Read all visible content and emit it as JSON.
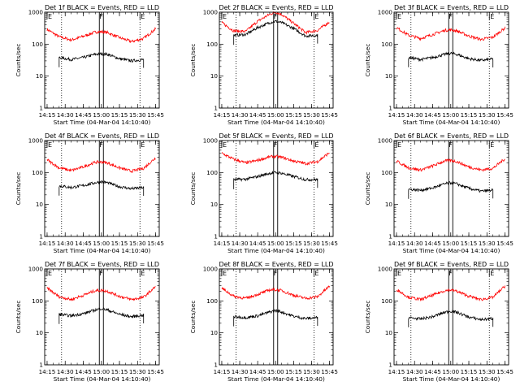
{
  "chart_data": {
    "type": "line",
    "yscale": "log",
    "ylim": [
      1,
      1000
    ],
    "y_ticks": [
      "1",
      "10",
      "100",
      "1000"
    ],
    "x_ticks": [
      "14:15",
      "14:30",
      "14:45",
      "15:00",
      "15:15",
      "15:30",
      "15:45"
    ],
    "xlabel": "Start Time (04-Mar-04 14:10:40)",
    "ylabel": "Counts/sec",
    "markers": [
      {
        "label": "E",
        "time": "14:15"
      },
      {
        "label": "F",
        "time": "15:00"
      },
      {
        "label": "E",
        "time": "15:32"
      }
    ],
    "dotted_lines": [
      "14:27",
      "15:32"
    ],
    "panels": [
      {
        "title": "Det 1f BLACK = Events, RED = LLD",
        "series": [
          {
            "name": "RED",
            "color": "#ff0000",
            "x": [
              "14:15",
              "14:25",
              "14:35",
              "14:45",
              "14:55",
              "15:00",
              "15:05",
              "15:15",
              "15:25",
              "15:35",
              "15:45"
            ],
            "y": [
              290,
              170,
              135,
              175,
              240,
              245,
              230,
              160,
              120,
              150,
              300
            ]
          },
          {
            "name": "BLACK",
            "color": "#000000",
            "x": [
              "14:25",
              "14:35",
              "14:45",
              "14:55",
              "15:00",
              "15:05",
              "15:15",
              "15:25",
              "15:35"
            ],
            "y": [
              38,
              33,
              38,
              48,
              50,
              48,
              35,
              30,
              33
            ]
          }
        ]
      },
      {
        "title": "Det 2f BLACK = Events, RED = LLD",
        "series": [
          {
            "name": "RED",
            "color": "#ff0000",
            "x": [
              "14:15",
              "14:25",
              "14:35",
              "14:45",
              "14:55",
              "15:00",
              "15:05",
              "15:15",
              "15:25",
              "15:35",
              "15:45"
            ],
            "y": [
              470,
              260,
              250,
              520,
              860,
              1000,
              850,
              450,
              230,
              270,
              500
            ]
          },
          {
            "name": "BLACK",
            "color": "#000000",
            "x": [
              "14:25",
              "14:35",
              "14:45",
              "14:55",
              "15:00",
              "15:05",
              "15:15",
              "15:25",
              "15:35"
            ],
            "y": [
              190,
              200,
              330,
              470,
              520,
              470,
              310,
              180,
              190
            ]
          }
        ]
      },
      {
        "title": "Det 3f BLACK = Events, RED = LLD",
        "series": [
          {
            "name": "RED",
            "color": "#ff0000",
            "x": [
              "14:15",
              "14:25",
              "14:35",
              "14:45",
              "14:55",
              "15:00",
              "15:05",
              "15:15",
              "15:25",
              "15:35",
              "15:45"
            ],
            "y": [
              330,
              190,
              150,
              200,
              270,
              280,
              260,
              180,
              140,
              165,
              320
            ]
          },
          {
            "name": "BLACK",
            "color": "#000000",
            "x": [
              "14:25",
              "14:35",
              "14:45",
              "14:55",
              "15:00",
              "15:05",
              "15:15",
              "15:25",
              "15:35"
            ],
            "y": [
              38,
              33,
              38,
              48,
              52,
              48,
              35,
              31,
              34
            ]
          }
        ]
      },
      {
        "title": "Det 4f BLACK = Events, RED = LLD",
        "series": [
          {
            "name": "RED",
            "color": "#ff0000",
            "x": [
              "14:15",
              "14:25",
              "14:35",
              "14:45",
              "14:55",
              "15:00",
              "15:05",
              "15:15",
              "15:25",
              "15:35",
              "15:45"
            ],
            "y": [
              250,
              140,
              115,
              150,
              210,
              215,
              200,
              140,
              110,
              135,
              290
            ]
          },
          {
            "name": "BLACK",
            "color": "#000000",
            "x": [
              "14:25",
              "14:35",
              "14:45",
              "14:55",
              "15:00",
              "15:05",
              "15:15",
              "15:25",
              "15:35"
            ],
            "y": [
              38,
              34,
              39,
              48,
              52,
              48,
              36,
              31,
              34
            ]
          }
        ]
      },
      {
        "title": "Det 5f BLACK = Events, RED = LLD",
        "series": [
          {
            "name": "RED",
            "color": "#ff0000",
            "x": [
              "14:15",
              "14:25",
              "14:35",
              "14:45",
              "14:55",
              "15:00",
              "15:05",
              "15:15",
              "15:25",
              "15:35",
              "15:45"
            ],
            "y": [
              400,
              260,
              200,
              240,
              310,
              320,
              300,
              230,
              190,
              220,
              420
            ]
          },
          {
            "name": "BLACK",
            "color": "#000000",
            "x": [
              "14:25",
              "14:35",
              "14:45",
              "14:55",
              "15:00",
              "15:05",
              "15:15",
              "15:25",
              "15:35"
            ],
            "y": [
              60,
              62,
              75,
              95,
              100,
              95,
              75,
              60,
              60
            ]
          }
        ]
      },
      {
        "title": "Det 6f BLACK = Events, RED = LLD",
        "series": [
          {
            "name": "RED",
            "color": "#ff0000",
            "x": [
              "14:15",
              "14:25",
              "14:35",
              "14:45",
              "14:55",
              "15:00",
              "15:05",
              "15:15",
              "15:25",
              "15:35",
              "15:45"
            ],
            "y": [
              230,
              140,
              120,
              160,
              230,
              240,
              220,
              150,
              120,
              135,
              270
            ]
          },
          {
            "name": "BLACK",
            "color": "#000000",
            "x": [
              "14:25",
              "14:35",
              "14:45",
              "14:55",
              "15:00",
              "15:05",
              "15:15",
              "15:25",
              "15:35"
            ],
            "y": [
              30,
              28,
              33,
              44,
              48,
              44,
              32,
              26,
              28
            ]
          }
        ]
      },
      {
        "title": "Det 7f BLACK = Events, RED = LLD",
        "series": [
          {
            "name": "RED",
            "color": "#ff0000",
            "x": [
              "14:15",
              "14:25",
              "14:35",
              "14:45",
              "14:55",
              "15:00",
              "15:05",
              "15:15",
              "15:25",
              "15:35",
              "15:45"
            ],
            "y": [
              250,
              135,
              110,
              150,
              210,
              215,
              200,
              140,
              110,
              130,
              280
            ]
          },
          {
            "name": "BLACK",
            "color": "#000000",
            "x": [
              "14:25",
              "14:35",
              "14:45",
              "14:55",
              "15:00",
              "15:05",
              "15:15",
              "15:25",
              "15:35"
            ],
            "y": [
              38,
              34,
              40,
              52,
              58,
              52,
              38,
              32,
              36
            ]
          }
        ]
      },
      {
        "title": "Det 8f BLACK = Events, RED = LLD",
        "series": [
          {
            "name": "RED",
            "color": "#ff0000",
            "x": [
              "14:15",
              "14:25",
              "14:35",
              "14:45",
              "14:55",
              "15:00",
              "15:05",
              "15:15",
              "15:25",
              "15:35",
              "15:45"
            ],
            "y": [
              250,
              140,
              120,
              160,
              220,
              225,
              210,
              150,
              120,
              135,
              290
            ]
          },
          {
            "name": "BLACK",
            "color": "#000000",
            "x": [
              "14:25",
              "14:35",
              "14:45",
              "14:55",
              "15:00",
              "15:05",
              "15:15",
              "15:25",
              "15:35"
            ],
            "y": [
              32,
              30,
              34,
              45,
              50,
              45,
              33,
              28,
              30
            ]
          }
        ]
      },
      {
        "title": "Det 9f BLACK = Events, RED = LLD",
        "series": [
          {
            "name": "RED",
            "color": "#ff0000",
            "x": [
              "14:15",
              "14:25",
              "14:35",
              "14:45",
              "14:55",
              "15:00",
              "15:05",
              "15:15",
              "15:25",
              "15:35",
              "15:45"
            ],
            "y": [
              230,
              130,
              110,
              150,
              210,
              220,
              200,
              140,
              110,
              130,
              290
            ]
          },
          {
            "name": "BLACK",
            "color": "#000000",
            "x": [
              "14:25",
              "14:35",
              "14:45",
              "14:55",
              "15:00",
              "15:05",
              "15:15",
              "15:25",
              "15:35"
            ],
            "y": [
              30,
              27,
              32,
              44,
              48,
              44,
              31,
              26,
              28
            ]
          }
        ]
      }
    ]
  }
}
